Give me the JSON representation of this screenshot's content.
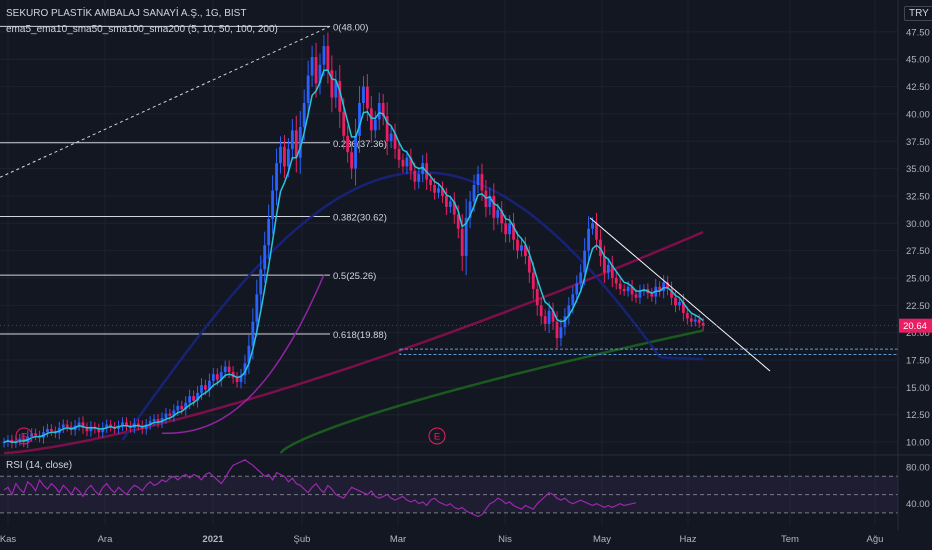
{
  "header": {
    "symbol_line": "SEKURO PLASTİK AMBALAJ SANAYİ A.Ş., 1G, BIST",
    "indicator_line": "ema5_ema10_sma50_sma100_sma200 (5, 10, 50, 100, 200)",
    "currency": "TRY"
  },
  "rsi_panel": {
    "label": "RSI (14, close)"
  },
  "colors": {
    "background": "#131722",
    "up_candle": "#2962ff",
    "down_candle": "#e91e63",
    "ema_line": "#26c6da",
    "sma50": "#9c27b0",
    "sma100": "#1a237e",
    "sma200_red": "#880e4f",
    "sma200_green": "#1b5e20",
    "rsi_line": "#9c27b0",
    "last_price_bg": "#e91e63",
    "trendline": "#ffffff",
    "support_dashed": "#5b9bd5"
  },
  "chart_data": [
    {
      "type": "candlestick",
      "price_axis": {
        "ticks": [
          "47.50",
          "45.00",
          "42.50",
          "40.00",
          "37.50",
          "35.00",
          "32.50",
          "30.00",
          "27.50",
          "25.00",
          "22.50",
          "20.00",
          "17.50",
          "15.00",
          "12.50",
          "10.00"
        ],
        "range": [
          9.0,
          49.5
        ]
      },
      "time_axis": {
        "ticks": [
          "Kas",
          "Ara",
          "2021",
          "Şub",
          "Mar",
          "Nis",
          "May",
          "Haz",
          "Tem",
          "Ağu"
        ]
      },
      "last_price": "20.64",
      "fibonacci": [
        {
          "label": "0(48.00)",
          "value": 48.0
        },
        {
          "label": "0.236(37.36)",
          "value": 37.36
        },
        {
          "label": "0.382(30.62)",
          "value": 30.62
        },
        {
          "label": "0.5(25.26)",
          "value": 25.26
        },
        {
          "label": "0.618(19.88)",
          "value": 19.88
        }
      ],
      "support_zone": [
        18.0,
        18.5
      ],
      "events": [
        "E",
        "E"
      ],
      "series": {
        "close": [
          10.0,
          10.2,
          9.9,
          10.1,
          10.3,
          10.0,
          10.5,
          10.8,
          10.6,
          10.4,
          10.9,
          11.2,
          11.0,
          10.8,
          11.3,
          11.6,
          11.4,
          11.1,
          11.5,
          11.8,
          11.3,
          11.0,
          11.4,
          11.2,
          10.9,
          11.3,
          11.6,
          11.4,
          11.2,
          11.5,
          11.8,
          11.5,
          11.3,
          11.7,
          11.5,
          11.2,
          11.6,
          11.9,
          12.1,
          11.8,
          12.2,
          12.6,
          12.4,
          12.9,
          13.3,
          13.0,
          13.6,
          14.2,
          13.8,
          14.5,
          15.2,
          14.8,
          15.6,
          16.2,
          15.7,
          16.4,
          16.9,
          16.4,
          15.9,
          15.5,
          16.1,
          17.2,
          18.8,
          21.0,
          23.5,
          25.8,
          28.0,
          30.4,
          33.0,
          35.5,
          37.0,
          35.2,
          36.8,
          38.5,
          36.0,
          38.8,
          41.0,
          43.5,
          45.2,
          42.8,
          44.5,
          46.2,
          44.0,
          41.5,
          43.0,
          40.2,
          38.0,
          36.5,
          35.0,
          38.0,
          41.0,
          42.5,
          40.5,
          38.5,
          39.5,
          41.0,
          39.8,
          37.5,
          38.2,
          36.8,
          35.8,
          35.2,
          36.0,
          34.8,
          33.8,
          34.5,
          35.5,
          34.0,
          33.5,
          32.8,
          33.2,
          32.5,
          31.5,
          32.0,
          30.8,
          29.5,
          27.0,
          30.5,
          32.0,
          33.5,
          34.5,
          33.0,
          31.5,
          32.5,
          30.5,
          31.2,
          30.0,
          29.0,
          30.0,
          28.5,
          27.5,
          28.0,
          27.0,
          25.5,
          24.0,
          22.5,
          21.5,
          20.8,
          22.0,
          21.0,
          19.5,
          20.5,
          21.5,
          22.5,
          23.5,
          24.5,
          25.5,
          27.5,
          29.5,
          30.0,
          28.5,
          27.0,
          25.5,
          26.2,
          25.0,
          24.5,
          24.0,
          23.8,
          24.2,
          23.5,
          23.2,
          23.8,
          24.0,
          23.6,
          23.3,
          24.2,
          23.8,
          24.6,
          24.0,
          23.2,
          22.5,
          22.8,
          21.8,
          21.3,
          21.0,
          21.2,
          20.9,
          20.64
        ],
        "ema": [
          10.0,
          10.1,
          10.0,
          10.0,
          10.1,
          10.1,
          10.2,
          10.4,
          10.5,
          10.5,
          10.6,
          10.8,
          10.9,
          10.9,
          11.0,
          11.2,
          11.3,
          11.2,
          11.3,
          11.5,
          11.4,
          11.3,
          11.3,
          11.3,
          11.2,
          11.2,
          11.3,
          11.4,
          11.3,
          11.4,
          11.5,
          11.5,
          11.4,
          11.5,
          11.5,
          11.4,
          11.5,
          11.6,
          11.8,
          11.8,
          11.9,
          12.1,
          12.2,
          12.4,
          12.7,
          12.8,
          13.1,
          13.4,
          13.6,
          13.9,
          14.3,
          14.5,
          14.8,
          15.2,
          15.4,
          15.7,
          16.1,
          16.2,
          16.1,
          15.9,
          16.0,
          16.4,
          17.2,
          18.5,
          20.1,
          22.0,
          24.0,
          26.1,
          28.4,
          30.8,
          32.9,
          33.7,
          34.7,
          36.0,
          36.0,
          36.9,
          38.3,
          40.0,
          41.7,
          42.1,
          42.9,
          44.0,
          44.0,
          43.2,
          43.1,
          42.1,
          40.7,
          39.3,
          37.9,
          37.9,
          38.9,
          40.1,
          40.2,
          39.6,
          39.6,
          40.1,
          40.0,
          39.2,
          38.9,
          38.2,
          37.4,
          36.7,
          36.5,
          35.9,
          35.2,
          35.0,
          35.1,
          34.7,
          34.3,
          33.8,
          33.6,
          33.2,
          32.6,
          32.4,
          31.9,
          31.1,
          29.7,
          30.0,
          30.7,
          31.6,
          32.6,
          32.7,
          32.3,
          32.4,
          31.8,
          31.6,
          31.1,
          30.4,
          30.3,
          29.7,
          29.0,
          28.6,
          28.1,
          27.2,
          26.1,
          24.9,
          23.8,
          22.8,
          22.5,
          22.0,
          21.2,
          21.0,
          21.1,
          21.6,
          22.2,
          23.0,
          23.8,
          25.0,
          26.5,
          27.7,
          28.0,
          27.7,
          27.0,
          26.7,
          26.1,
          25.6,
          25.1,
          24.6,
          24.5,
          24.2,
          23.8,
          23.8,
          23.9,
          23.8,
          23.6,
          23.8,
          23.8,
          24.1,
          24.1,
          23.8,
          23.4,
          23.2,
          22.7,
          22.2,
          21.8,
          21.6,
          21.4,
          21.1
        ],
        "sma50": [
          null,
          null,
          null,
          null,
          null,
          null,
          null,
          null,
          null,
          null,
          null,
          null,
          null,
          null,
          null,
          null,
          null,
          null,
          null,
          null,
          null,
          null,
          null,
          null,
          null,
          null,
          null,
          null,
          null,
          null,
          null,
          null,
          null,
          null,
          null,
          null,
          null,
          null,
          null,
          null,
          null,
          null,
          null,
          null,
          null,
          null,
          null,
          null,
          null,
          11.9,
          12.0,
          12.1,
          12.2,
          12.4,
          12.5,
          12.7,
          12.9,
          13.0,
          13.2,
          13.3,
          13.5,
          13.7,
          13.9,
          14.2,
          14.5,
          14.9,
          15.3,
          15.8,
          16.3,
          16.9,
          17.5,
          18.1,
          18.7,
          19.4,
          20.0,
          20.7,
          21.4,
          22.2,
          23.0,
          23.7,
          24.4,
          25.2,
          25.9,
          26.6,
          27.3,
          27.9,
          28.5,
          29.1,
          29.6,
          30.1,
          30.7,
          31.3,
          31.8,
          32.3,
          32.8,
          33.3,
          33.8,
          34.3,
          34.7,
          35.0,
          35.3,
          35.5,
          35.7,
          35.8,
          35.9,
          36.0,
          36.1,
          36.1,
          36.1,
          36.0,
          35.9,
          35.8,
          35.7,
          35.6,
          35.4,
          35.2,
          34.9,
          34.8,
          34.7,
          34.6,
          34.5,
          34.3,
          34.1,
          33.9,
          33.7,
          33.5,
          33.3,
          33.1,
          32.9,
          32.7,
          32.4,
          32.2,
          31.9,
          31.6,
          31.3,
          31.0,
          30.7,
          30.4,
          30.1,
          29.9,
          29.6,
          29.4,
          29.2,
          29.0,
          28.8,
          28.6,
          28.5,
          28.4,
          28.3,
          28.2,
          28.0,
          27.9,
          27.7,
          27.5,
          27.4,
          27.2,
          27.0,
          26.8,
          26.7,
          26.5,
          26.3,
          26.1,
          26.0,
          25.8,
          25.6,
          25.5,
          25.3,
          25.2,
          25.0,
          24.9,
          24.7,
          24.6,
          24.4,
          24.3
        ],
        "sma100": [
          null,
          null,
          null,
          null,
          null,
          null,
          null,
          null,
          null,
          null,
          null,
          null,
          null,
          null,
          null,
          null,
          null,
          null,
          null,
          null,
          null,
          null,
          null,
          null,
          null,
          null,
          null,
          null,
          null,
          null,
          null,
          null,
          null,
          null,
          null,
          null,
          null,
          null,
          null,
          null,
          null,
          null,
          null,
          null,
          null,
          null,
          null,
          null,
          null,
          null,
          null,
          null,
          null,
          null,
          null,
          null,
          null,
          null,
          null,
          null,
          null,
          null,
          null,
          null,
          null,
          null,
          null,
          null,
          null,
          null,
          null,
          null,
          null,
          null,
          null,
          null,
          null,
          null,
          null,
          null,
          null,
          null,
          null,
          null,
          null,
          null,
          null,
          null,
          null,
          null,
          null,
          null,
          null,
          null,
          null,
          null,
          null,
          null,
          null,
          25.0,
          25.3,
          25.6,
          25.9,
          26.2,
          26.5,
          26.8,
          27.0,
          27.3,
          27.6,
          27.8,
          28.1,
          28.3,
          28.5,
          28.8,
          29.0,
          29.2,
          29.4,
          29.6,
          29.8,
          30.0,
          30.2,
          30.4,
          30.6,
          30.8,
          31.0,
          31.1,
          31.3,
          31.4,
          31.6,
          31.7,
          31.9,
          32.0,
          32.1,
          32.2,
          32.3,
          32.4,
          32.4,
          32.5,
          32.6,
          32.6,
          32.7,
          32.7,
          32.8,
          32.8,
          32.9,
          32.9,
          33.0,
          33.0,
          33.0,
          33.1,
          33.1,
          33.1,
          33.2,
          33.2,
          33.2,
          33.2,
          33.2,
          33.2,
          33.2,
          33.2,
          33.1,
          33.1,
          33.0,
          33.0,
          32.9,
          32.8,
          32.8,
          32.7,
          32.6,
          32.6,
          32.5,
          32.4,
          32.4,
          32.3,
          32.2
        ]
      },
      "sma_extended": {
        "sma100_full": "drawn from the start of the chart",
        "notes": ""
      }
    },
    {
      "type": "line",
      "name": "",
      "axis_ticks": [
        "80.00",
        "40.00"
      ],
      "levels": [
        70,
        50,
        30
      ],
      "values": [
        55,
        58,
        50,
        62,
        56,
        52,
        64,
        60,
        54,
        66,
        60,
        56,
        62,
        58,
        52,
        60,
        56,
        50,
        58,
        54,
        48,
        56,
        60,
        54,
        50,
        58,
        62,
        56,
        52,
        58,
        54,
        50,
        56,
        60,
        58,
        54,
        60,
        64,
        60,
        62,
        66,
        64,
        68,
        70,
        66,
        70,
        72,
        68,
        72,
        70,
        66,
        72,
        74,
        70,
        66,
        62,
        68,
        76,
        82,
        84,
        86,
        88,
        85,
        82,
        78,
        74,
        70,
        72,
        66,
        74,
        72,
        70,
        64,
        68,
        62,
        60,
        56,
        52,
        58,
        62,
        56,
        52,
        60,
        56,
        50,
        48,
        46,
        52,
        58,
        56,
        54,
        52,
        50,
        54,
        48,
        46,
        48,
        50,
        46,
        44,
        46,
        48,
        44,
        42,
        44,
        40,
        42,
        38,
        44,
        46,
        42,
        40,
        38,
        40,
        36,
        34,
        36,
        32,
        30,
        28,
        26,
        28,
        34,
        40,
        42,
        46,
        44,
        40,
        42,
        38,
        36,
        34,
        38,
        36,
        34,
        40,
        44,
        48,
        52,
        50,
        46,
        44,
        46,
        42,
        40,
        42,
        44,
        42,
        40,
        38,
        40,
        38,
        36,
        38,
        36,
        38,
        40,
        38,
        39,
        40,
        41
      ]
    }
  ]
}
